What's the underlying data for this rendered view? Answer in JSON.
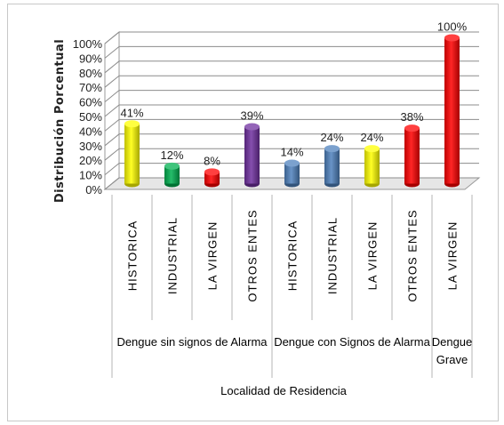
{
  "chart_data": {
    "type": "bar",
    "ylabel": "Distribución Porcentual",
    "xlabel": "Localidad de Residencia",
    "ylim": [
      0,
      100
    ],
    "yticks": [
      "0%",
      "10%",
      "20%",
      "30%",
      "40%",
      "50%",
      "60%",
      "70%",
      "80%",
      "90%",
      "100%"
    ],
    "grid": true,
    "groups": [
      {
        "label_lines": [
          "Dengue sin signos de Alarma"
        ],
        "bars": [
          {
            "category": "HISTORICA",
            "value": 41,
            "label": "41%",
            "color": "#ffff00"
          },
          {
            "category": "INDUSTRIAL",
            "value": 12,
            "label": "12%",
            "color": "#00b050"
          },
          {
            "category": "LA VIRGEN",
            "value": 8,
            "label": "8%",
            "color": "#ff0000"
          },
          {
            "category": "OTROS ENTES",
            "value": 39,
            "label": "39%",
            "color": "#7030a0"
          }
        ]
      },
      {
        "label_lines": [
          "Dengue con Signos de Alarma"
        ],
        "bars": [
          {
            "category": "HISTORICA",
            "value": 14,
            "label": "14%",
            "color": "#4f81bd"
          },
          {
            "category": "INDUSTRIAL",
            "value": 24,
            "label": "24%",
            "color": "#4f81bd"
          },
          {
            "category": "LA VIRGEN",
            "value": 24,
            "label": "24%",
            "color": "#ffff00"
          },
          {
            "category": "OTROS ENTES",
            "value": 38,
            "label": "38%",
            "color": "#ff0000"
          }
        ]
      },
      {
        "label_lines": [
          "Dengue",
          "Grave"
        ],
        "bars": [
          {
            "category": "LA VIRGEN",
            "value": 100,
            "label": "100%",
            "color": "#ff0000"
          }
        ]
      }
    ]
  }
}
